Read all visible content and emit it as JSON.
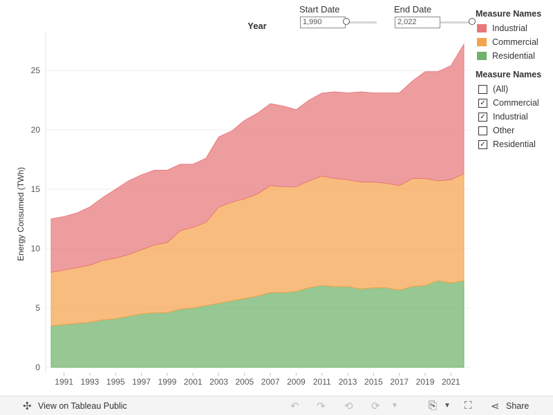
{
  "filters": {
    "start_date": {
      "label": "Start Date",
      "value": "1,990",
      "fraction": 0.0
    },
    "end_date": {
      "label": "End Date",
      "value": "2,022",
      "fraction": 1.0
    }
  },
  "legend": {
    "title": "Measure Names",
    "items": [
      {
        "name": "Industrial",
        "color": "#E8777A"
      },
      {
        "name": "Commercial",
        "color": "#F5A34C"
      },
      {
        "name": "Residential",
        "color": "#6FB26A"
      }
    ]
  },
  "measure_filter": {
    "title": "Measure Names",
    "options": [
      {
        "label": "(All)",
        "checked": false
      },
      {
        "label": "Commercial",
        "checked": true
      },
      {
        "label": "Industrial",
        "checked": true
      },
      {
        "label": "Other",
        "checked": false
      },
      {
        "label": "Residential",
        "checked": true
      }
    ]
  },
  "chart_data": {
    "type": "area",
    "stacked": true,
    "title": "",
    "xlabel": "Year",
    "ylabel": "Energy Consumed  (TWh)",
    "x": [
      1990,
      1991,
      1992,
      1993,
      1994,
      1995,
      1996,
      1997,
      1998,
      1999,
      2000,
      2001,
      2002,
      2003,
      2004,
      2005,
      2006,
      2007,
      2008,
      2009,
      2010,
      2011,
      2012,
      2013,
      2014,
      2015,
      2016,
      2017,
      2018,
      2019,
      2020,
      2021,
      2022
    ],
    "xticks": [
      "1991",
      "1993",
      "1995",
      "1997",
      "1999",
      "2001",
      "2003",
      "2005",
      "2007",
      "2009",
      "2011",
      "2013",
      "2015",
      "2017",
      "2019",
      "2021"
    ],
    "ylim": [
      0,
      29
    ],
    "yticks": [
      "0",
      "5",
      "10",
      "15",
      "20",
      "25"
    ],
    "grid": "horizontal",
    "series": [
      {
        "name": "Residential",
        "color": "#6FB26A",
        "values": [
          3.5,
          3.6,
          3.7,
          3.8,
          4.0,
          4.1,
          4.3,
          4.5,
          4.6,
          4.6,
          4.9,
          5.0,
          5.2,
          5.4,
          5.6,
          5.8,
          6.0,
          6.3,
          6.3,
          6.4,
          6.7,
          6.9,
          6.8,
          6.8,
          6.6,
          6.7,
          6.7,
          6.5,
          6.8,
          6.9,
          7.3,
          7.1,
          7.3
        ]
      },
      {
        "name": "Commercial",
        "color": "#F5A34C",
        "values": [
          4.5,
          4.6,
          4.7,
          4.8,
          5.0,
          5.1,
          5.2,
          5.4,
          5.7,
          5.9,
          6.6,
          6.8,
          7.0,
          8.1,
          8.3,
          8.4,
          8.6,
          9.0,
          8.9,
          8.8,
          9.0,
          9.2,
          9.1,
          9.0,
          9.0,
          8.9,
          8.8,
          8.8,
          9.1,
          9.0,
          8.4,
          8.7,
          9.0
        ]
      },
      {
        "name": "Industrial",
        "color": "#E8777A",
        "values": [
          4.5,
          4.5,
          4.6,
          4.9,
          5.3,
          5.8,
          6.2,
          6.3,
          6.3,
          6.1,
          5.6,
          5.3,
          5.4,
          5.9,
          6.0,
          6.6,
          6.8,
          6.9,
          6.8,
          6.5,
          6.8,
          7.0,
          7.3,
          7.3,
          7.6,
          7.5,
          7.6,
          7.8,
          8.2,
          9.0,
          9.2,
          9.6,
          10.9
        ]
      }
    ]
  },
  "toolbar": {
    "view_label": "View on Tableau Public",
    "share_label": "Share",
    "tableau_icon": "tableau-logo-icon",
    "undo_icon": "undo-icon",
    "redo_icon": "redo-icon",
    "revert_icon": "revert-icon",
    "refresh_icon": "refresh-icon",
    "download_icon": "download-icon",
    "fullscreen_icon": "fullscreen-icon",
    "share_icon": "share-icon"
  }
}
